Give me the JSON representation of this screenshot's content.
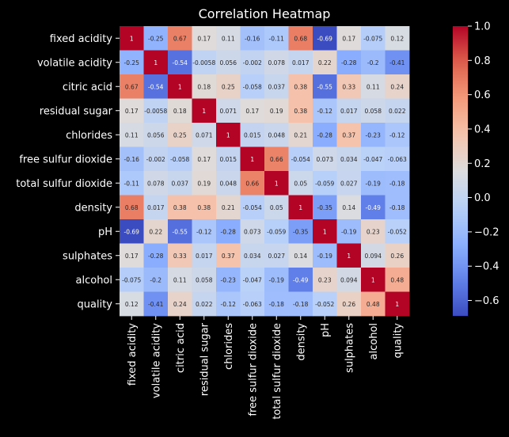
{
  "chart_data": {
    "type": "heatmap",
    "title": "Correlation Heatmap",
    "labels": [
      "fixed acidity",
      "volatile acidity",
      "citric acid",
      "residual sugar",
      "chlorides",
      "free sulfur dioxide",
      "total sulfur dioxide",
      "density",
      "pH",
      "sulphates",
      "alcohol",
      "quality"
    ],
    "values": [
      [
        1,
        -0.25,
        0.67,
        0.17,
        0.11,
        -0.16,
        -0.11,
        0.68,
        -0.69,
        0.17,
        -0.075,
        0.12
      ],
      [
        -0.25,
        1,
        -0.54,
        -0.0058,
        0.056,
        -0.002,
        0.078,
        0.017,
        0.22,
        -0.28,
        -0.2,
        -0.41
      ],
      [
        0.67,
        -0.54,
        1,
        0.18,
        0.25,
        -0.058,
        0.037,
        0.38,
        -0.55,
        0.33,
        0.11,
        0.24
      ],
      [
        0.17,
        -0.0058,
        0.18,
        1,
        0.071,
        0.17,
        0.19,
        0.38,
        -0.12,
        0.017,
        0.058,
        0.022
      ],
      [
        0.11,
        0.056,
        0.25,
        0.071,
        1,
        0.015,
        0.048,
        0.21,
        -0.28,
        0.37,
        -0.23,
        -0.12
      ],
      [
        -0.16,
        -0.002,
        -0.058,
        0.17,
        0.015,
        1,
        0.66,
        -0.054,
        0.073,
        0.034,
        -0.047,
        -0.063
      ],
      [
        -0.11,
        0.078,
        0.037,
        0.19,
        0.048,
        0.66,
        1,
        0.05,
        -0.059,
        0.027,
        -0.19,
        -0.18
      ],
      [
        0.68,
        0.017,
        0.38,
        0.38,
        0.21,
        -0.054,
        0.05,
        1,
        -0.35,
        0.14,
        -0.49,
        -0.18
      ],
      [
        -0.69,
        0.22,
        -0.55,
        -0.12,
        -0.28,
        0.073,
        -0.059,
        -0.35,
        1,
        -0.19,
        0.23,
        -0.052
      ],
      [
        0.17,
        -0.28,
        0.33,
        0.017,
        0.37,
        0.034,
        0.027,
        0.14,
        -0.19,
        1,
        0.094,
        0.26
      ],
      [
        -0.075,
        -0.2,
        0.11,
        0.058,
        -0.23,
        -0.047,
        -0.19,
        -0.49,
        0.23,
        0.094,
        1,
        0.48
      ],
      [
        0.12,
        -0.41,
        0.24,
        0.022,
        -0.12,
        -0.063,
        -0.18,
        -0.18,
        -0.052,
        0.26,
        0.48,
        1
      ]
    ],
    "colormap": "coolwarm",
    "vmin": -0.69,
    "vmax": 1,
    "colorbar_ticks": [
      1.0,
      0.8,
      0.6,
      0.4,
      0.2,
      0.0,
      -0.2,
      -0.4,
      -0.6
    ],
    "colorbar_tick_labels": [
      "1.0",
      "0.8",
      "0.6",
      "0.4",
      "0.2",
      "0.0",
      "−0.2",
      "−0.4",
      "−0.6"
    ],
    "annotations": true,
    "background_color": "#000000",
    "text_color": "#ffffff"
  }
}
